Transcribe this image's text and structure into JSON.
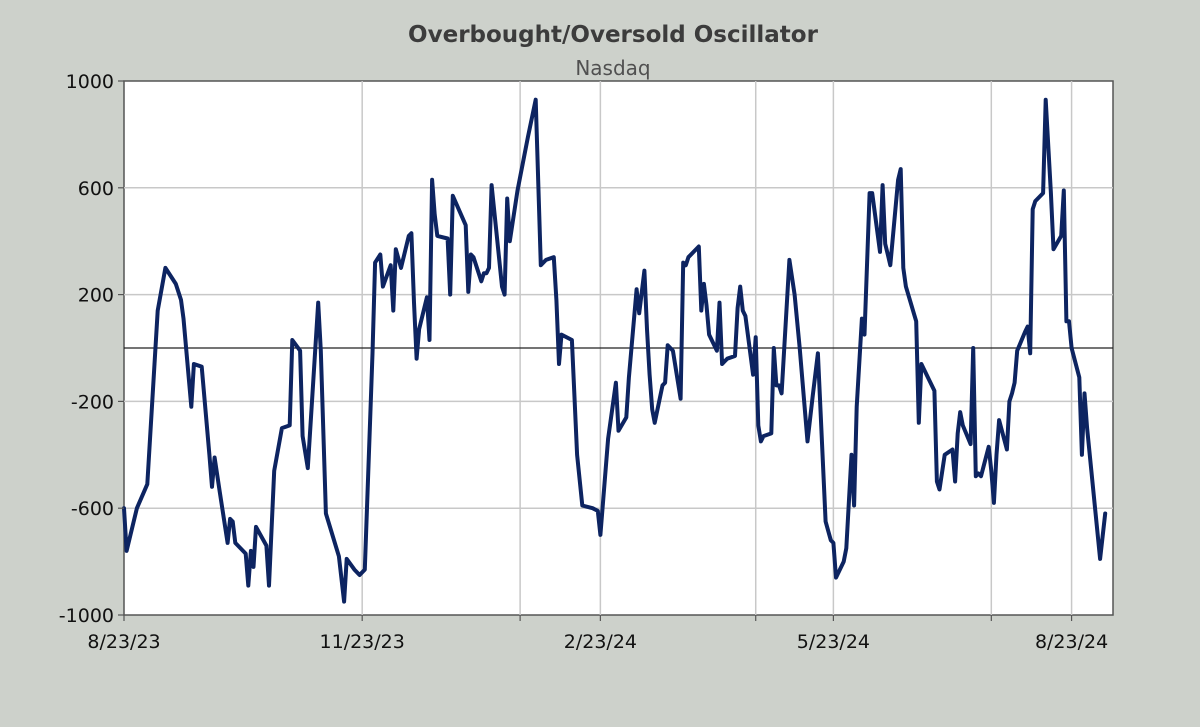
{
  "chart_data": {
    "type": "line",
    "title": "Overbought/Oversold Oscillator",
    "subtitle": "Nasdaq",
    "xlabel": "",
    "ylabel": "",
    "ylim": [
      -1000,
      1000
    ],
    "yticks": [
      1000,
      600,
      200,
      -200,
      -600,
      -1000
    ],
    "ytick_labels": [
      "1000",
      "600",
      "200",
      "-200",
      "-600",
      "-1000"
    ],
    "xlim": [
      "2023-08-23",
      "2024-09-08"
    ],
    "xticks": [
      "2023-08-23",
      "2023-11-23",
      "2024-01-23",
      "2024-02-23",
      "2024-04-23",
      "2024-05-23",
      "2024-07-23",
      "2024-08-23"
    ],
    "xtick_labels": [
      "8/23/23",
      "11/23/23",
      "",
      "2/23/24",
      "",
      "5/23/24",
      "",
      "8/23/24"
    ],
    "zero_line": 0,
    "grid": true,
    "line_color": "#0d2461",
    "series": [
      {
        "points": [
          [
            "2023-08-23",
            -600
          ],
          [
            "2023-08-24",
            -760
          ],
          [
            "2023-08-28",
            -600
          ],
          [
            "2023-09-01",
            -510
          ],
          [
            "2023-09-05",
            140
          ],
          [
            "2023-09-08",
            300
          ],
          [
            "2023-09-12",
            240
          ],
          [
            "2023-09-14",
            180
          ],
          [
            "2023-09-15",
            110
          ],
          [
            "2023-09-18",
            -220
          ],
          [
            "2023-09-19",
            -60
          ],
          [
            "2023-09-22",
            -70
          ],
          [
            "2023-09-25",
            -400
          ],
          [
            "2023-09-26",
            -520
          ],
          [
            "2023-09-27",
            -410
          ],
          [
            "2023-09-29",
            -540
          ],
          [
            "2023-10-02",
            -730
          ],
          [
            "2023-10-03",
            -640
          ],
          [
            "2023-10-04",
            -650
          ],
          [
            "2023-10-05",
            -730
          ],
          [
            "2023-10-09",
            -770
          ],
          [
            "2023-10-10",
            -890
          ],
          [
            "2023-10-11",
            -760
          ],
          [
            "2023-10-12",
            -820
          ],
          [
            "2023-10-13",
            -670
          ],
          [
            "2023-10-17",
            -740
          ],
          [
            "2023-10-18",
            -890
          ],
          [
            "2023-10-20",
            -460
          ],
          [
            "2023-10-23",
            -300
          ],
          [
            "2023-10-26",
            -290
          ],
          [
            "2023-10-27",
            30
          ],
          [
            "2023-10-30",
            -10
          ],
          [
            "2023-10-31",
            -330
          ],
          [
            "2023-11-02",
            -450
          ],
          [
            "2023-11-06",
            170
          ],
          [
            "2023-11-07",
            -10
          ],
          [
            "2023-11-09",
            -620
          ],
          [
            "2023-11-14",
            -780
          ],
          [
            "2023-11-16",
            -950
          ],
          [
            "2023-11-17",
            -790
          ],
          [
            "2023-11-20",
            -830
          ],
          [
            "2023-11-22",
            -850
          ],
          [
            "2023-11-24",
            -830
          ],
          [
            "2023-11-27",
            -20
          ],
          [
            "2023-11-28",
            320
          ],
          [
            "2023-11-30",
            350
          ],
          [
            "2023-12-01",
            230
          ],
          [
            "2023-12-04",
            310
          ],
          [
            "2023-12-05",
            140
          ],
          [
            "2023-12-06",
            370
          ],
          [
            "2023-12-08",
            300
          ],
          [
            "2023-12-11",
            420
          ],
          [
            "2023-12-12",
            430
          ],
          [
            "2023-12-13",
            170
          ],
          [
            "2023-12-14",
            -40
          ],
          [
            "2023-12-15",
            70
          ],
          [
            "2023-12-18",
            190
          ],
          [
            "2023-12-19",
            30
          ],
          [
            "2023-12-20",
            630
          ],
          [
            "2023-12-21",
            500
          ],
          [
            "2023-12-22",
            420
          ],
          [
            "2023-12-26",
            410
          ],
          [
            "2023-12-27",
            200
          ],
          [
            "2023-12-28",
            570
          ],
          [
            "2024-01-02",
            460
          ],
          [
            "2024-01-03",
            210
          ],
          [
            "2024-01-04",
            350
          ],
          [
            "2024-01-05",
            340
          ],
          [
            "2024-01-08",
            250
          ],
          [
            "2024-01-09",
            280
          ],
          [
            "2024-01-10",
            280
          ],
          [
            "2024-01-11",
            300
          ],
          [
            "2024-01-12",
            610
          ],
          [
            "2024-01-16",
            230
          ],
          [
            "2024-01-17",
            200
          ],
          [
            "2024-01-18",
            560
          ],
          [
            "2024-01-19",
            400
          ],
          [
            "2024-01-22",
            590
          ],
          [
            "2024-01-26",
            790
          ],
          [
            "2024-01-29",
            930
          ],
          [
            "2024-01-31",
            310
          ],
          [
            "2024-02-02",
            330
          ],
          [
            "2024-02-05",
            340
          ],
          [
            "2024-02-06",
            180
          ],
          [
            "2024-02-07",
            -60
          ],
          [
            "2024-02-08",
            50
          ],
          [
            "2024-02-12",
            30
          ],
          [
            "2024-02-14",
            -400
          ],
          [
            "2024-02-16",
            -590
          ],
          [
            "2024-02-20",
            -600
          ],
          [
            "2024-02-22",
            -610
          ],
          [
            "2024-02-23",
            -700
          ],
          [
            "2024-02-26",
            -340
          ],
          [
            "2024-02-29",
            -130
          ],
          [
            "2024-03-01",
            -310
          ],
          [
            "2024-03-04",
            -260
          ],
          [
            "2024-03-05",
            -110
          ],
          [
            "2024-03-08",
            220
          ],
          [
            "2024-03-09",
            130
          ],
          [
            "2024-03-11",
            290
          ],
          [
            "2024-03-12",
            70
          ],
          [
            "2024-03-13",
            -100
          ],
          [
            "2024-03-14",
            -230
          ],
          [
            "2024-03-15",
            -280
          ],
          [
            "2024-03-18",
            -140
          ],
          [
            "2024-03-19",
            -130
          ],
          [
            "2024-03-20",
            10
          ],
          [
            "2024-03-22",
            -10
          ],
          [
            "2024-03-25",
            -190
          ],
          [
            "2024-03-26",
            320
          ],
          [
            "2024-03-27",
            310
          ],
          [
            "2024-03-28",
            340
          ],
          [
            "2024-04-01",
            380
          ],
          [
            "2024-04-02",
            140
          ],
          [
            "2024-04-03",
            240
          ],
          [
            "2024-04-04",
            160
          ],
          [
            "2024-04-05",
            50
          ],
          [
            "2024-04-08",
            -10
          ],
          [
            "2024-04-09",
            170
          ],
          [
            "2024-04-10",
            -60
          ],
          [
            "2024-04-11",
            -50
          ],
          [
            "2024-04-12",
            -40
          ],
          [
            "2024-04-15",
            -30
          ],
          [
            "2024-04-16",
            150
          ],
          [
            "2024-04-17",
            230
          ],
          [
            "2024-04-18",
            140
          ],
          [
            "2024-04-19",
            120
          ],
          [
            "2024-04-22",
            -100
          ],
          [
            "2024-04-23",
            40
          ],
          [
            "2024-04-24",
            -290
          ],
          [
            "2024-04-25",
            -350
          ],
          [
            "2024-04-26",
            -330
          ],
          [
            "2024-04-29",
            -320
          ],
          [
            "2024-04-30",
            0
          ],
          [
            "2024-05-01",
            -140
          ],
          [
            "2024-05-02",
            -140
          ],
          [
            "2024-05-03",
            -170
          ],
          [
            "2024-05-06",
            330
          ],
          [
            "2024-05-08",
            200
          ],
          [
            "2024-05-10",
            0
          ],
          [
            "2024-05-13",
            -350
          ],
          [
            "2024-05-15",
            -180
          ],
          [
            "2024-05-17",
            -20
          ],
          [
            "2024-05-20",
            -650
          ],
          [
            "2024-05-22",
            -720
          ],
          [
            "2024-05-23",
            -730
          ],
          [
            "2024-05-24",
            -860
          ],
          [
            "2024-05-27",
            -800
          ],
          [
            "2024-05-28",
            -750
          ],
          [
            "2024-05-30",
            -400
          ],
          [
            "2024-05-31",
            -590
          ],
          [
            "2024-06-01",
            -220
          ],
          [
            "2024-06-03",
            110
          ],
          [
            "2024-06-04",
            50
          ],
          [
            "2024-06-06",
            580
          ],
          [
            "2024-06-07",
            580
          ],
          [
            "2024-06-10",
            360
          ],
          [
            "2024-06-11",
            610
          ],
          [
            "2024-06-12",
            390
          ],
          [
            "2024-06-13",
            350
          ],
          [
            "2024-06-14",
            310
          ],
          [
            "2024-06-17",
            630
          ],
          [
            "2024-06-18",
            670
          ],
          [
            "2024-06-19",
            300
          ],
          [
            "2024-06-20",
            230
          ],
          [
            "2024-06-24",
            100
          ],
          [
            "2024-06-25",
            -280
          ],
          [
            "2024-06-26",
            -60
          ],
          [
            "2024-06-27",
            -80
          ],
          [
            "2024-07-01",
            -160
          ],
          [
            "2024-07-02",
            -500
          ],
          [
            "2024-07-03",
            -530
          ],
          [
            "2024-07-05",
            -400
          ],
          [
            "2024-07-08",
            -380
          ],
          [
            "2024-07-09",
            -500
          ],
          [
            "2024-07-10",
            -320
          ],
          [
            "2024-07-11",
            -240
          ],
          [
            "2024-07-12",
            -290
          ],
          [
            "2024-07-15",
            -360
          ],
          [
            "2024-07-16",
            0
          ],
          [
            "2024-07-17",
            -480
          ],
          [
            "2024-07-18",
            -470
          ],
          [
            "2024-07-19",
            -480
          ],
          [
            "2024-07-22",
            -370
          ],
          [
            "2024-07-23",
            -460
          ],
          [
            "2024-07-24",
            -580
          ],
          [
            "2024-07-25",
            -400
          ],
          [
            "2024-07-26",
            -270
          ],
          [
            "2024-07-29",
            -380
          ],
          [
            "2024-07-30",
            -200
          ],
          [
            "2024-07-31",
            -170
          ],
          [
            "2024-08-01",
            -130
          ],
          [
            "2024-08-02",
            -10
          ],
          [
            "2024-08-05",
            60
          ],
          [
            "2024-08-06",
            80
          ],
          [
            "2024-08-07",
            -20
          ],
          [
            "2024-08-08",
            520
          ],
          [
            "2024-08-09",
            550
          ],
          [
            "2024-08-12",
            580
          ],
          [
            "2024-08-13",
            930
          ],
          [
            "2024-08-15",
            580
          ],
          [
            "2024-08-16",
            370
          ],
          [
            "2024-08-19",
            420
          ],
          [
            "2024-08-20",
            590
          ],
          [
            "2024-08-21",
            100
          ],
          [
            "2024-08-22",
            100
          ],
          [
            "2024-08-23",
            0
          ],
          [
            "2024-08-26",
            -110
          ],
          [
            "2024-08-27",
            -400
          ],
          [
            "2024-08-28",
            -170
          ],
          [
            "2024-08-29",
            -300
          ],
          [
            "2024-09-03",
            -790
          ],
          [
            "2024-09-05",
            -620
          ]
        ]
      }
    ]
  }
}
